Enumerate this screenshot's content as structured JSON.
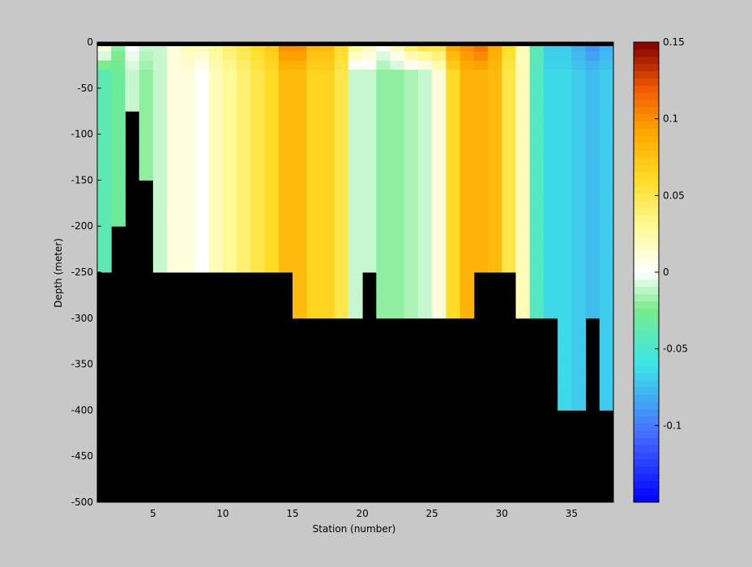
{
  "chart_data": {
    "type": "heatmap",
    "title": "",
    "xlabel": "Station (number)",
    "ylabel": "Depth (meter)",
    "xlim": [
      1,
      38
    ],
    "ylim": [
      -500,
      0
    ],
    "x_ticks": [
      5,
      10,
      15,
      20,
      25,
      30,
      35
    ],
    "y_ticks": [
      0,
      -50,
      -100,
      -150,
      -200,
      -250,
      -300,
      -350,
      -400,
      -450,
      -500
    ],
    "colorbar": {
      "range": [
        -0.15,
        0.15
      ],
      "ticks": [
        0.15,
        0.1,
        0.05,
        0,
        -0.05,
        -0.1
      ],
      "tick_labels": [
        "0.15",
        "0.1",
        "0.05",
        "0",
        "-0.05",
        "-0.1"
      ]
    },
    "background_color": "#000000",
    "stations": [
      1,
      2,
      3,
      4,
      5,
      6,
      7,
      8,
      9,
      10,
      11,
      12,
      13,
      14,
      15,
      16,
      17,
      18,
      19,
      20,
      21,
      22,
      23,
      24,
      25,
      26,
      27,
      28,
      29,
      30,
      31,
      32,
      33,
      34,
      35,
      36,
      37
    ],
    "depth_levels": [
      0,
      -10,
      -20,
      -30,
      -40,
      -50,
      -60,
      -70,
      -80,
      -90,
      -100,
      -110,
      -120,
      -130,
      -140,
      -150,
      -160,
      -170,
      -180,
      -190,
      -200,
      -210,
      -220,
      -230,
      -240,
      -250,
      -260,
      -270,
      -280,
      -290,
      -300,
      -310,
      -320,
      -330,
      -340,
      -350,
      -360,
      -370,
      -380,
      -390,
      -400
    ],
    "bottom_depth": [
      -250,
      -200,
      -75,
      -150,
      -250,
      -250,
      -250,
      -250,
      -250,
      -250,
      -250,
      -250,
      -250,
      -250,
      -300,
      -300,
      -300,
      -300,
      -300,
      -250,
      -300,
      -300,
      -300,
      -300,
      -300,
      -300,
      -300,
      -250,
      -250,
      -250,
      -300,
      -300,
      -300,
      -400,
      -400,
      -300,
      -400
    ],
    "surface_values": [
      0.01,
      -0.02,
      0.0,
      -0.01,
      -0.01,
      0.01,
      0.02,
      0.02,
      0.03,
      0.04,
      0.05,
      0.06,
      0.07,
      0.1,
      0.1,
      0.08,
      0.08,
      0.06,
      0.03,
      0.02,
      0.0,
      0.02,
      0.04,
      0.05,
      0.05,
      0.09,
      0.1,
      0.11,
      0.09,
      0.06,
      0.02,
      -0.04,
      -0.07,
      -0.07,
      -0.08,
      -0.09,
      -0.08
    ],
    "column_values": [
      -0.04,
      -0.03,
      -0.01,
      -0.02,
      -0.01,
      0.01,
      0.01,
      0.0,
      0.02,
      0.03,
      0.04,
      0.05,
      0.06,
      0.08,
      0.08,
      0.065,
      0.065,
      0.05,
      -0.01,
      -0.01,
      -0.02,
      -0.02,
      -0.015,
      -0.01,
      0.01,
      0.06,
      0.085,
      0.085,
      0.08,
      0.05,
      0.02,
      -0.045,
      -0.065,
      -0.065,
      -0.07,
      -0.075,
      -0.07
    ]
  }
}
